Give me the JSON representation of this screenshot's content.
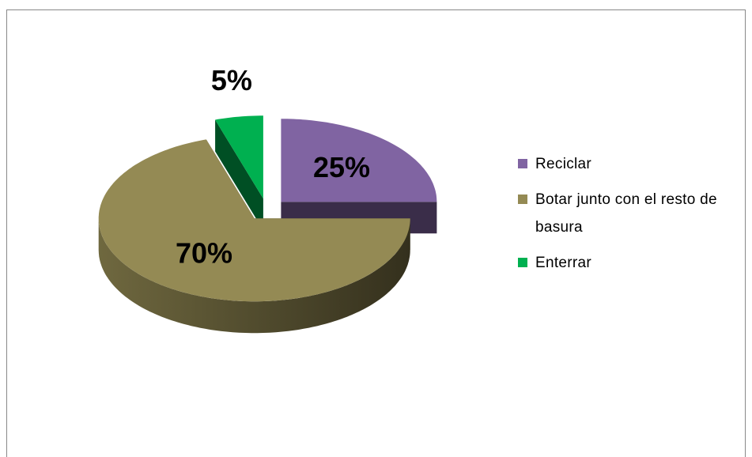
{
  "chart_data": {
    "type": "pie",
    "labels": [
      "Reciclar",
      "Botar junto con el resto de basura",
      "Enterrar"
    ],
    "values": [
      25,
      70,
      5
    ],
    "value_labels": [
      "25%",
      "70%",
      "5%"
    ],
    "colors": [
      "#8064a2",
      "#948a54",
      "#00b050"
    ],
    "legend": "right",
    "exploded": true,
    "three_d": true
  }
}
